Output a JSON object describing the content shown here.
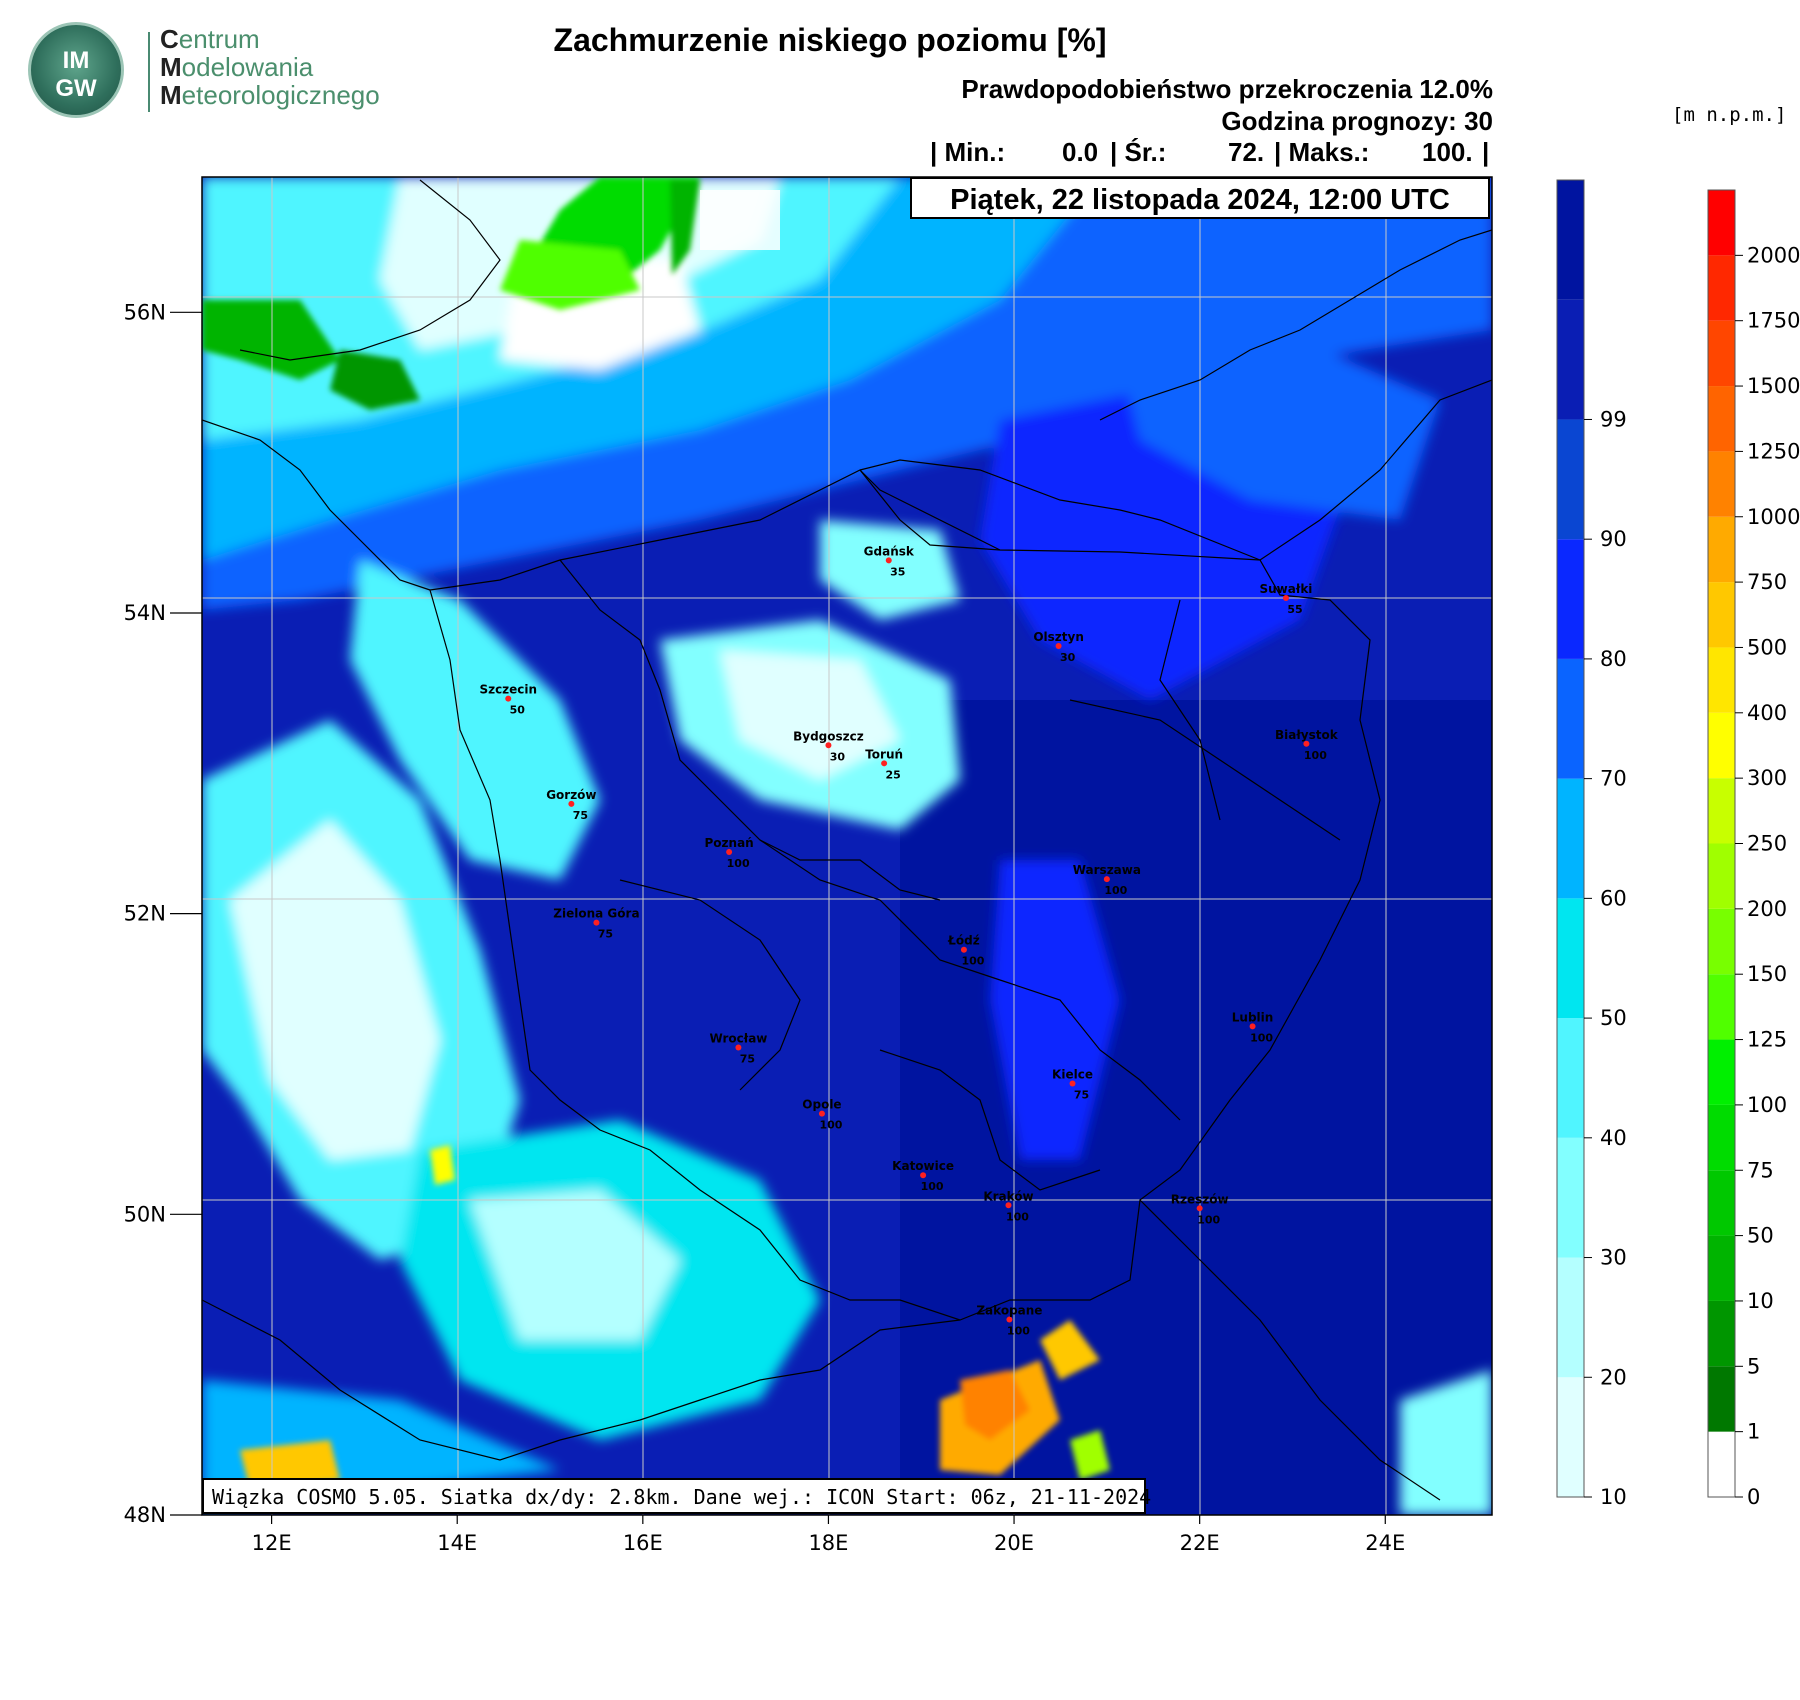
{
  "logo": {
    "badge_line1": "IM",
    "badge_line2": "GW",
    "name_lines": [
      {
        "first": "C",
        "rest": "entrum"
      },
      {
        "first": "M",
        "rest": "odelowania"
      },
      {
        "first": "M",
        "rest": "eteorologicznego"
      }
    ]
  },
  "title": "Zachmurzenie niskiego poziomu [%]",
  "subtitle_probability": "Prawdopodobieństwo przekroczenia 12.0%",
  "subtitle_forecast_hour": "Godzina prognozy: 30",
  "stats": {
    "open": "| Min.:",
    "min": "0.0",
    "sep1": "| Śr.:",
    "mean": "72.",
    "sep2": "| Maks.:",
    "max": "100.",
    "close": "|"
  },
  "date": "Piątek, 22 listopada 2024, 12:00 UTC",
  "run_info": "Wiązka COSMO 5.05. Siatka dx/dy: 2.8km. Dane wej.: ICON Start: 06z, 21-11-2024",
  "map": {
    "lon_range": [
      11.25,
      25.15
    ],
    "lat_range": [
      48.0,
      56.9
    ],
    "lon_ticks": [
      "12E",
      "14E",
      "16E",
      "18E",
      "20E",
      "22E",
      "24E"
    ],
    "lat_ticks": [
      "48N",
      "50N",
      "52N",
      "54N",
      "56N"
    ],
    "cities": [
      {
        "name": "Gdańsk",
        "value": "35"
      },
      {
        "name": "Suwałki",
        "value": "55"
      },
      {
        "name": "Olsztyn",
        "value": "30"
      },
      {
        "name": "Szczecin",
        "value": "50"
      },
      {
        "name": "Bydgoszcz",
        "value": "30"
      },
      {
        "name": "Toruń",
        "value": "25"
      },
      {
        "name": "Białystok",
        "value": "100"
      },
      {
        "name": "Gorzów",
        "value": "75"
      },
      {
        "name": "Poznań",
        "value": "100"
      },
      {
        "name": "Warszawa",
        "value": "100"
      },
      {
        "name": "Zielona Góra",
        "value": "75"
      },
      {
        "name": "Łódź",
        "value": "100"
      },
      {
        "name": "Lublin",
        "value": "100"
      },
      {
        "name": "Wrocław",
        "value": "75"
      },
      {
        "name": "Kielce",
        "value": "75"
      },
      {
        "name": "Opole",
        "value": "100"
      },
      {
        "name": "Katowice",
        "value": "100"
      },
      {
        "name": "Kraków",
        "value": "100"
      },
      {
        "name": "Rzeszów",
        "value": "100"
      },
      {
        "name": "Zakopane",
        "value": "100"
      }
    ]
  },
  "cloud_colorbar": {
    "labels": [
      "10",
      "20",
      "30",
      "40",
      "50",
      "60",
      "70",
      "80",
      "90",
      "99"
    ],
    "colors": [
      "#e0ffff",
      "#b4ffff",
      "#82ffff",
      "#50f5ff",
      "#00e6f0",
      "#00b4ff",
      "#0a64ff",
      "#0a28ff",
      "#0a46d2",
      "#0a1eb4",
      "#0014a0"
    ]
  },
  "elevation_colorbar": {
    "unit": "[m n.p.m.]",
    "labels": [
      "0",
      "1",
      "5",
      "10",
      "50",
      "75",
      "100",
      "125",
      "150",
      "200",
      "250",
      "300",
      "400",
      "500",
      "750",
      "1000",
      "1250",
      "1500",
      "1750",
      "2000"
    ],
    "colors": [
      "#ffffff",
      "#007800",
      "#009600",
      "#00b400",
      "#00c800",
      "#00dc00",
      "#00f000",
      "#50ff00",
      "#78ff00",
      "#a0ff00",
      "#c8ff00",
      "#ffff00",
      "#ffe600",
      "#ffc800",
      "#ffaa00",
      "#ff8200",
      "#ff6400",
      "#ff4600",
      "#ff2800",
      "#ff0000"
    ]
  }
}
